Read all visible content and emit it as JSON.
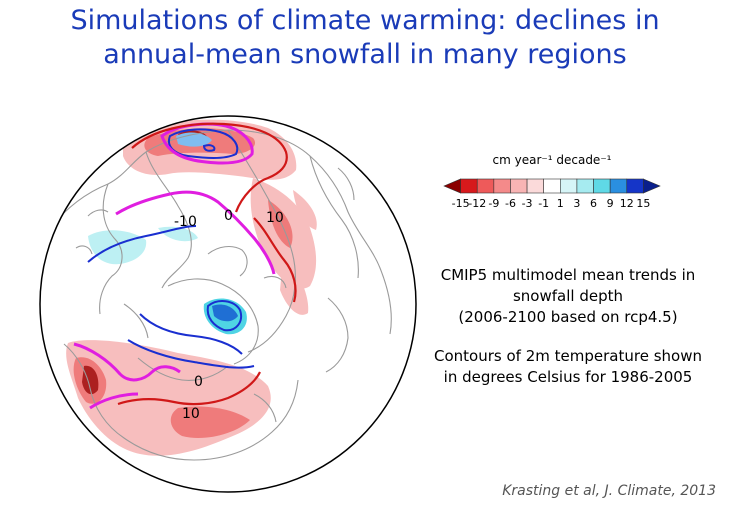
{
  "title": {
    "line1": "Simulations of climate warming: declines in",
    "line2": "annual-mean snowfall in many regions"
  },
  "colorbar": {
    "title": "cm year⁻¹ decade⁻¹",
    "ticks": [
      "-15",
      "-12",
      "-9",
      "-6",
      "-3",
      "-1",
      "1",
      "3",
      "6",
      "9",
      "12",
      "15"
    ],
    "colors": [
      "#8b0000",
      "#d7191c",
      "#ee5a5a",
      "#f48a8a",
      "#f8b4b4",
      "#fbdada",
      "#ffffff",
      "#d6f5f7",
      "#a6ebf0",
      "#5fd9e6",
      "#2a8fe0",
      "#1535c8",
      "#0a1f8c"
    ]
  },
  "map": {
    "contour_labels": [
      "-10",
      "0",
      "10",
      "0",
      "10"
    ],
    "colors": {
      "contour_blue": "#1a2fd0",
      "contour_magenta": "#e01ee0",
      "contour_red": "#d01818",
      "coast": "#9a9a9a"
    }
  },
  "description": {
    "block1": [
      "CMIP5 multimodel mean trends in",
      "snowfall depth",
      "(2006-2100 based on rcp4.5)"
    ],
    "block2": [
      "Contours of 2m temperature shown",
      "in degrees Celsius for 1986-2005"
    ]
  },
  "citation": "Krasting et al, J. Climate, 2013"
}
